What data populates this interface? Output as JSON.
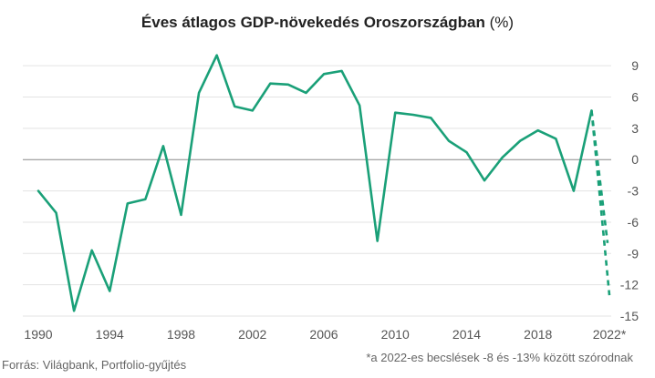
{
  "chart_data": {
    "type": "line",
    "title": "Éves átlagos GDP-növekedés Oroszországban",
    "title_unit": "(%)",
    "x": [
      1990,
      1991,
      1992,
      1993,
      1994,
      1995,
      1996,
      1997,
      1998,
      1999,
      2000,
      2001,
      2002,
      2003,
      2004,
      2005,
      2006,
      2007,
      2008,
      2009,
      2010,
      2011,
      2012,
      2013,
      2014,
      2015,
      2016,
      2017,
      2018,
      2019,
      2020,
      2021
    ],
    "values": [
      -3.0,
      -5.1,
      -14.5,
      -8.7,
      -12.6,
      -4.2,
      -3.8,
      1.3,
      -5.3,
      6.4,
      10.0,
      5.1,
      4.7,
      7.3,
      7.2,
      6.4,
      8.2,
      8.5,
      5.2,
      -7.8,
      4.5,
      4.3,
      4.0,
      1.8,
      0.7,
      -2.0,
      0.2,
      1.8,
      2.8,
      2.0,
      -3.0,
      4.7
    ],
    "estimate": {
      "label": "2022*",
      "from_year": 2021,
      "from_value": 4.7,
      "range": [
        -8,
        -13
      ]
    },
    "x_tick_labels": [
      "1990",
      "1994",
      "1998",
      "2002",
      "2006",
      "2010",
      "2014",
      "2018",
      "2022*"
    ],
    "x_tick_years": [
      1990,
      1994,
      1998,
      2002,
      2006,
      2010,
      2014,
      2018,
      2022
    ],
    "y_ticks": [
      9,
      6,
      3,
      0,
      -3,
      -6,
      -9,
      -12,
      -15
    ],
    "ylim": [
      -15,
      10.5
    ],
    "xlim": [
      1990,
      2022
    ],
    "grid": true,
    "legend": "none",
    "source": "Forrás: Világbank, Portfolio-gyűjtés",
    "note": "*a 2022-es becslések -8 és -13% között szórodnak",
    "color": "#1aa078"
  }
}
